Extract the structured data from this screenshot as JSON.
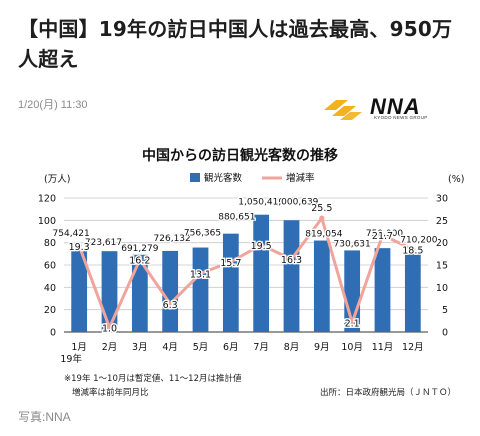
{
  "article": {
    "headline": "【中国】19年の訪日中国人は過去最高、950万人超え",
    "date": "1/20(月) 11:30",
    "photo_credit": "写真:NNA"
  },
  "logo": {
    "word": "NNA",
    "sub": "KYODO NEWS GROUP",
    "color": "#f2b21b"
  },
  "chart_data": {
    "type": "bar",
    "title": "中国からの訪日観光客数の推移",
    "categories": [
      "1月",
      "2月",
      "3月",
      "4月",
      "5月",
      "6月",
      "7月",
      "8月",
      "9月",
      "10月",
      "11月",
      "12月"
    ],
    "x_sub_label": "19年",
    "series": [
      {
        "name": "観光客数",
        "type": "bar",
        "axis": "left",
        "color": "#2f6db5",
        "values": [
          754421,
          723617,
          691279,
          726132,
          756365,
          880651,
          1050420,
          1000639,
          819054,
          730631,
          750900,
          710200
        ],
        "labels": [
          "754,421",
          "723,617",
          "691,279",
          "726,132",
          "756,365",
          "880,651",
          "1,050,420",
          "1,000,639",
          "819,054",
          "730,631",
          "750,900",
          "710,200"
        ]
      },
      {
        "name": "増減率",
        "type": "line",
        "axis": "right",
        "color": "#f0a49a",
        "values": [
          19.3,
          1.0,
          16.2,
          6.3,
          13.1,
          15.7,
          19.5,
          16.3,
          25.5,
          2.1,
          21.7,
          18.5
        ],
        "labels": [
          "19.3",
          "1.0",
          "16.2",
          "6.3",
          "13.1",
          "15.7",
          "19.5",
          "16.3",
          "25.5",
          "2.1",
          "21.7",
          "18.5"
        ]
      }
    ],
    "y_left": {
      "unit": "(万人)",
      "min": 0,
      "max": 120,
      "ticks": [
        "0",
        "20",
        "40",
        "60",
        "80",
        "100",
        "120"
      ]
    },
    "y_right": {
      "unit": "(%)",
      "min": 0,
      "max": 30,
      "ticks": [
        "0",
        "5",
        "10",
        "15",
        "20",
        "25",
        "30"
      ]
    },
    "legend": {
      "position": "top"
    },
    "grid": true,
    "notes": [
      "※19年 1～10月は暫定値、11～12月は推計値",
      "増減率は前年同月比"
    ],
    "source": "出所：日本政府観光局（ＪＮＴＯ）"
  }
}
